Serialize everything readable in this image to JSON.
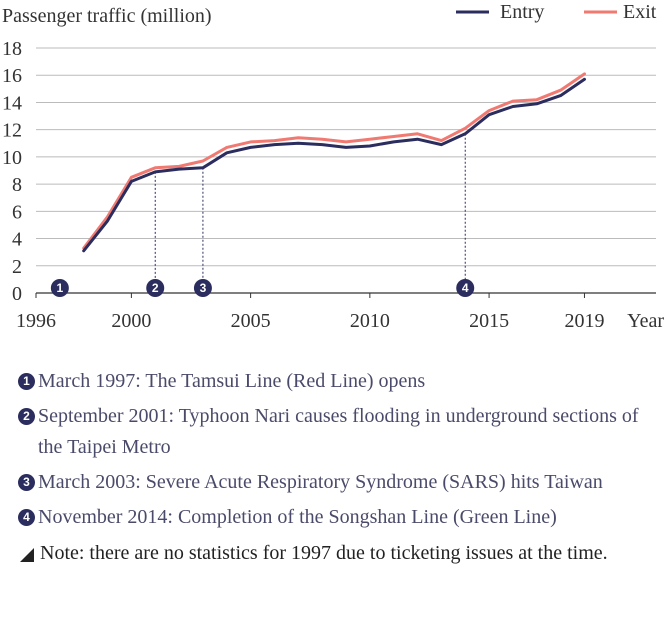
{
  "chart_data": {
    "type": "line",
    "ylabel": "Passenger traffic (million)",
    "xlabel": "Year",
    "x_ticks": [
      1996,
      2000,
      2005,
      2010,
      2015,
      2019
    ],
    "y_ticks": [
      0,
      2,
      4,
      6,
      8,
      10,
      12,
      14,
      16,
      18
    ],
    "xlim": [
      1996,
      2022
    ],
    "ylim": [
      0,
      18
    ],
    "grid": "horizontal",
    "legend_position": "top-right",
    "x": [
      1998,
      1999,
      2000,
      2001,
      2002,
      2003,
      2004,
      2005,
      2006,
      2007,
      2008,
      2009,
      2010,
      2011,
      2012,
      2013,
      2014,
      2015,
      2016,
      2017,
      2018,
      2019
    ],
    "series": [
      {
        "name": "Entry",
        "color": "#2b2d5e",
        "values": [
          3.1,
          5.3,
          8.2,
          8.9,
          9.1,
          9.2,
          10.3,
          10.7,
          10.9,
          11.0,
          10.9,
          10.7,
          10.8,
          11.1,
          11.3,
          10.9,
          11.7,
          13.1,
          13.7,
          13.9,
          14.5,
          15.7
        ]
      },
      {
        "name": "Exit",
        "color": "#f07a72",
        "values": [
          3.3,
          5.6,
          8.5,
          9.2,
          9.3,
          9.7,
          10.7,
          11.1,
          11.2,
          11.4,
          11.3,
          11.1,
          11.3,
          11.5,
          11.7,
          11.2,
          12.1,
          13.4,
          14.1,
          14.2,
          14.9,
          16.1
        ]
      }
    ],
    "events": [
      {
        "marker": "1",
        "year": 1997
      },
      {
        "marker": "2",
        "year": 2001
      },
      {
        "marker": "3",
        "year": 2003
      },
      {
        "marker": "4",
        "year": 2014
      }
    ]
  },
  "notes": [
    {
      "marker": "1",
      "text": "March 1997: The Tamsui Line (Red Line) opens"
    },
    {
      "marker": "2",
      "text": "September 2001: Typhoon Nari causes flooding in underground sections of the Taipei Metro"
    },
    {
      "marker": "3",
      "text": "March 2003: Severe Acute Respiratory Syndrome (SARS) hits Taiwan"
    },
    {
      "marker": "4",
      "text": "November 2014: Completion of the Songshan Line (Green Line)"
    }
  ],
  "footnote": "Note: there are no statistics for 1997 due to ticketing issues at the time.",
  "colors": {
    "axis": "#333333",
    "grid": "#bbbbbb",
    "badge": "#2b2d5e",
    "note_text": "#4a4a6a"
  }
}
